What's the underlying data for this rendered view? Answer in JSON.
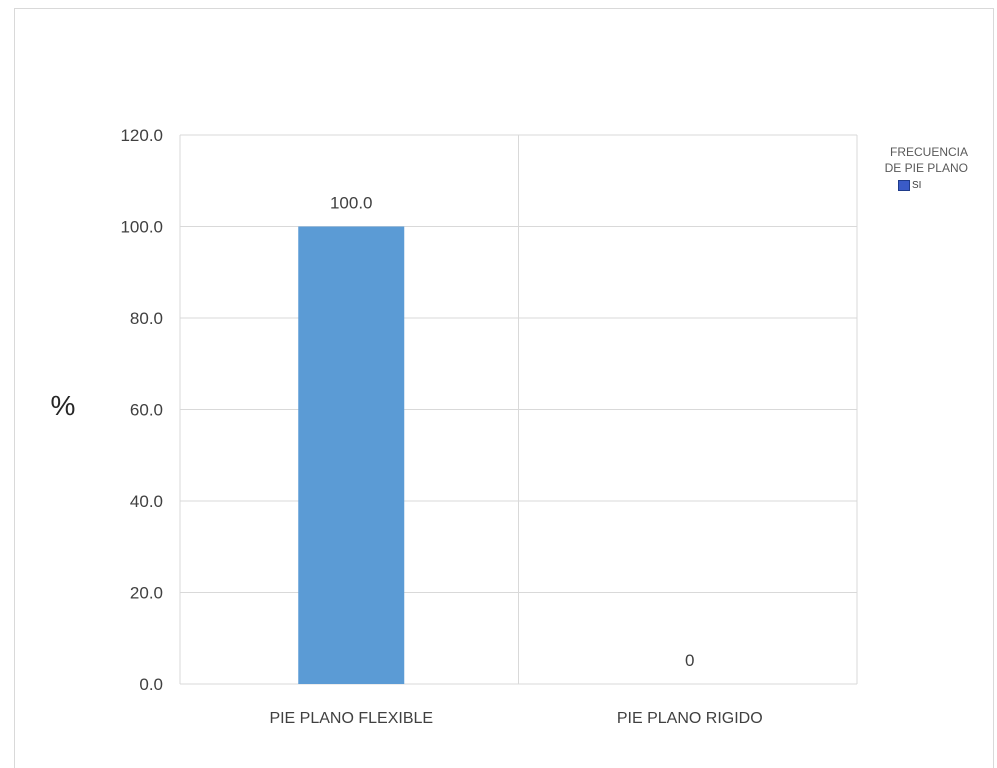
{
  "chart_data": {
    "type": "bar",
    "categories": [
      "PIE PLANO FLEXIBLE",
      "PIE PLANO RIGIDO"
    ],
    "series": [
      {
        "name": "SI",
        "values": [
          100.0,
          0
        ]
      }
    ],
    "data_labels": [
      "100.0",
      "0"
    ],
    "ylabel": "%",
    "ylim": [
      0,
      120
    ],
    "yticks": [
      "0.0",
      "20.0",
      "40.0",
      "60.0",
      "80.0",
      "100.0",
      "120.0"
    ],
    "ytick_values": [
      0,
      20,
      40,
      60,
      80,
      100,
      120
    ],
    "grid": true,
    "legend": {
      "title": "FRECUENCIA DE PIE PLANO",
      "entries": [
        "SI"
      ],
      "placement": "right"
    }
  },
  "colors": {
    "bar": "#5b9bd5",
    "legend_swatch": "#3a5bc7",
    "grid": "#d9d9d9",
    "axis_text": "#404040"
  }
}
